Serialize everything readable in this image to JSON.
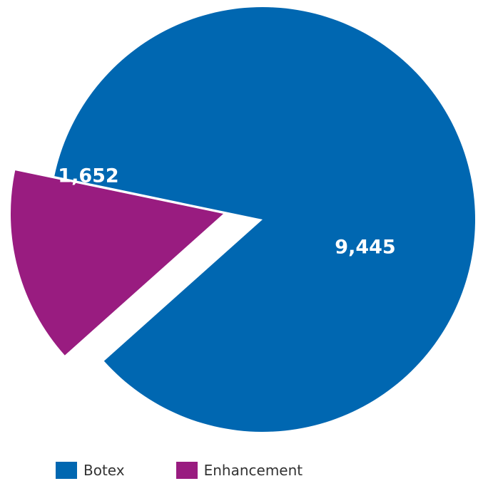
{
  "chart_data": {
    "type": "pie",
    "slices": [
      {
        "label": "Botex",
        "value": 9445,
        "display": "9,445",
        "color": "#0067b1",
        "exploded": false
      },
      {
        "label": "Enhancement",
        "value": 1652,
        "display": "1,652",
        "color": "#991c80",
        "exploded": true
      }
    ],
    "legend_position": "bottom"
  }
}
